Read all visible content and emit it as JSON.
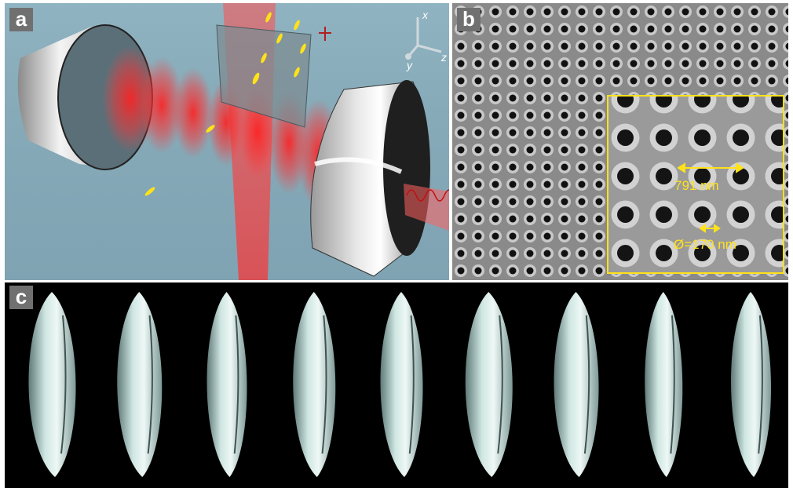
{
  "figure": {
    "panel_a": {
      "label": "a",
      "axes": {
        "x": "x",
        "y": "y",
        "z": "z"
      }
    },
    "panel_b": {
      "label": "b",
      "inset": {
        "period_label": "791 nm",
        "diameter_label": "Ø=170 nm"
      }
    },
    "panel_c": {
      "label": "c",
      "shape_count": 9
    }
  },
  "colors": {
    "highlight_yellow": "#ffe21a",
    "laser_red": "#ff2a2a",
    "tag_gray": "#707070"
  }
}
